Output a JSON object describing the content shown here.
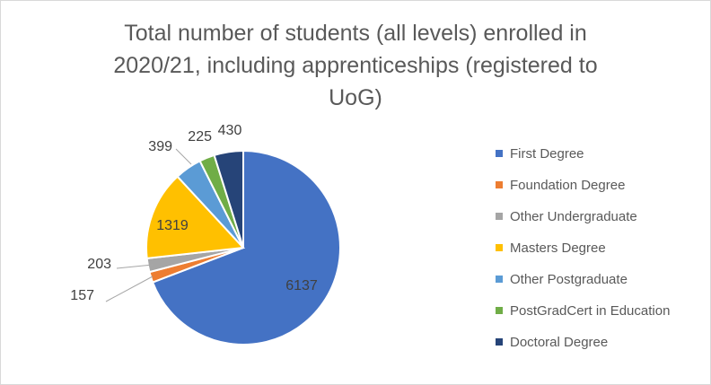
{
  "chart_data": {
    "type": "pie",
    "title_lines": [
      "Total number of students (all levels) enrolled in",
      "2020/21, including apprenticeships (registered to",
      "UoG)"
    ],
    "legend_placement": "right",
    "start_angle_deg": 0,
    "direction": "clockwise",
    "slices": [
      {
        "label": "First Degree",
        "value": 6137,
        "color": "#4472C4"
      },
      {
        "label": "Foundation Degree",
        "value": 157,
        "color": "#ED7D31"
      },
      {
        "label": "Other Undergraduate",
        "value": 203,
        "color": "#A5A5A5"
      },
      {
        "label": "Masters Degree",
        "value": 1319,
        "color": "#FFC000"
      },
      {
        "label": "Other Postgraduate",
        "value": 399,
        "color": "#5B9BD5"
      },
      {
        "label": "PostGradCert in Education",
        "value": 225,
        "color": "#70AD47"
      },
      {
        "label": "Doctoral Degree",
        "value": 430,
        "color": "#264478"
      }
    ]
  }
}
